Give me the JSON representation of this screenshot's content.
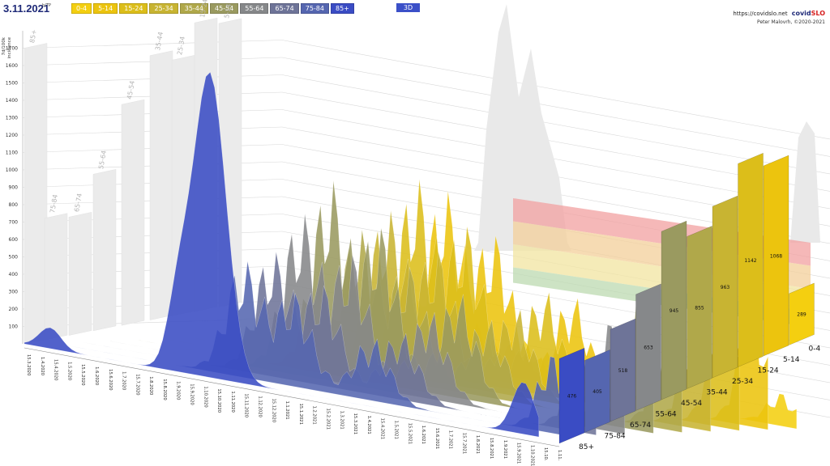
{
  "header": {
    "date": "3.11.2021",
    "note": "b/TP",
    "legend": [
      {
        "label": "0-4",
        "color": "#f4cf10"
      },
      {
        "label": "5-14",
        "color": "#ecc40e"
      },
      {
        "label": "15-24",
        "color": "#dcbe1a"
      },
      {
        "label": "25-34",
        "color": "#c8b432"
      },
      {
        "label": "35-44",
        "color": "#b0a84a"
      },
      {
        "label": "45-54",
        "color": "#9a9a60"
      },
      {
        "label": "55-64",
        "color": "#86888a"
      },
      {
        "label": "65-74",
        "color": "#6e7498"
      },
      {
        "label": "75-84",
        "color": "#5566b0"
      },
      {
        "label": "85+",
        "color": "#3a4cc4"
      }
    ],
    "view_button": "3D",
    "url": "https://covidslo.net",
    "brand_main": "covid",
    "brand_accent": "SLO",
    "author": "Peter Malovrh, ©2020-2021"
  },
  "chart_data": {
    "type": "area",
    "title": "",
    "ylabel_lines": [
      "7d/100k",
      "incidence"
    ],
    "ylim": [
      0,
      1800
    ],
    "yticks": [
      100,
      200,
      300,
      400,
      500,
      600,
      700,
      800,
      900,
      1000,
      1100,
      1200,
      1300,
      1400,
      1500,
      1600,
      1700
    ],
    "x_dates": [
      "15.3.2020",
      "1.4.2020",
      "15.4.2020",
      "1.5.2020",
      "15.5.2020",
      "1.6.2020",
      "15.6.2020",
      "1.7.2020",
      "15.7.2020",
      "1.8.2020",
      "15.8.2020",
      "1.9.2020",
      "15.9.2020",
      "1.10.2020",
      "15.10.2020",
      "1.11.2020",
      "15.11.2020",
      "1.12.2020",
      "15.12.2020",
      "1.1.2021",
      "15.1.2021",
      "1.2.2021",
      "15.2.2021",
      "1.3.2021",
      "15.3.2021",
      "1.4.2021",
      "15.4.2021",
      "1.5.2021",
      "15.5.2021",
      "1.6.2021",
      "15.6.2021",
      "1.7.2021",
      "15.7.2021",
      "1.8.2021",
      "15.8.2021",
      "1.9.2021",
      "15.9.2021",
      "1.10.2021",
      "15.10.",
      "1.11."
    ],
    "series": [
      {
        "name": "0-4",
        "color": "#f4cf10",
        "current": 289,
        "peak": 289
      },
      {
        "name": "5-14",
        "color": "#ecc40e",
        "current": 1068,
        "peak": 1068
      },
      {
        "name": "15-24",
        "color": "#dcbe1a",
        "current": 1142,
        "peak": 1142
      },
      {
        "name": "25-34",
        "color": "#c8b432",
        "current": 963,
        "peak": 963
      },
      {
        "name": "35-44",
        "color": "#b0a84a",
        "current": 855,
        "peak": 855
      },
      {
        "name": "45-54",
        "color": "#9a9a60",
        "current": 945,
        "peak": 1150
      },
      {
        "name": "55-64",
        "color": "#86888a",
        "current": 653,
        "peak": 960
      },
      {
        "name": "65-74",
        "color": "#6e7498",
        "current": 518,
        "peak": 740
      },
      {
        "name": "75-84",
        "color": "#5566b0",
        "current": 405,
        "peak": 690
      },
      {
        "name": "85+",
        "color": "#3a4cc4",
        "current": 476,
        "peak": 1800
      }
    ],
    "back_wall_peak_labels": [
      "85+",
      "15-24",
      "5-14",
      "35-44",
      "25-34",
      "45-54",
      "55-64",
      "75-84",
      "65-74"
    ],
    "threshold_bands": [
      {
        "from": 500,
        "to": 650,
        "color": "#f2a0a0"
      },
      {
        "from": 350,
        "to": 500,
        "color": "#f3cf9a"
      },
      {
        "from": 200,
        "to": 350,
        "color": "#f2e4a0"
      },
      {
        "from": 100,
        "to": 200,
        "color": "#bcd9b0"
      }
    ],
    "grid": true
  }
}
